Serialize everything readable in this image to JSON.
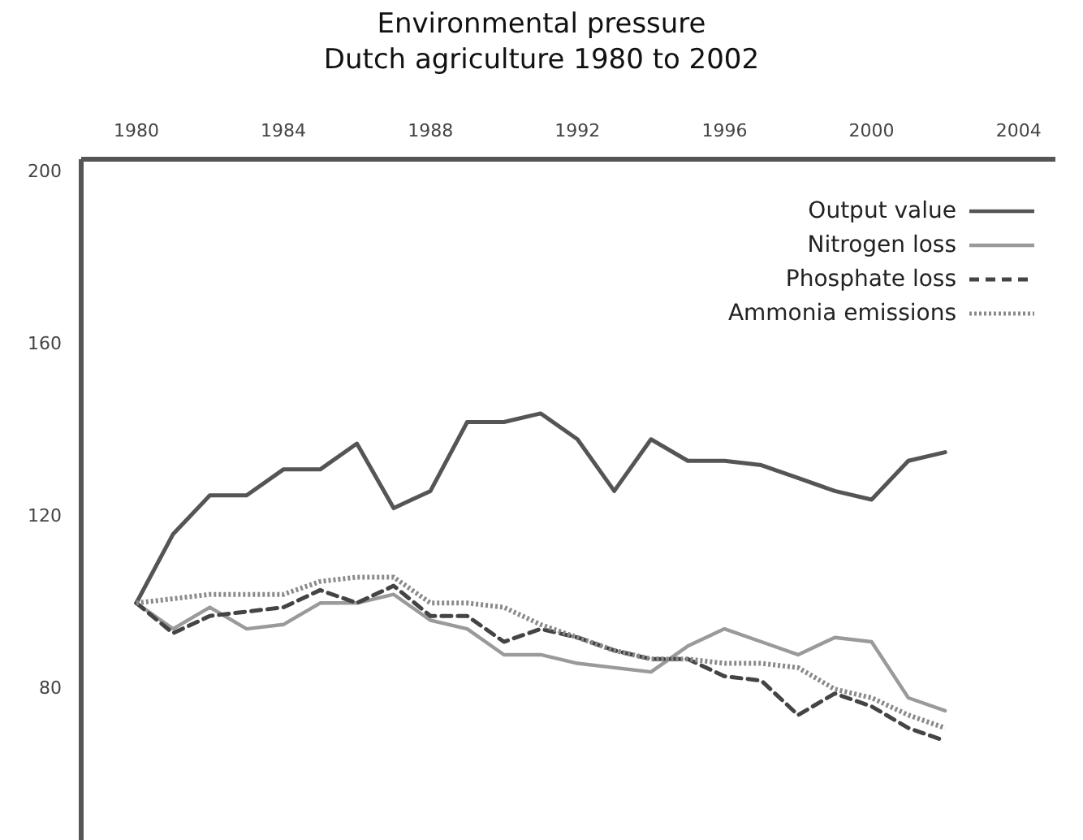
{
  "chart_data": {
    "type": "line",
    "title": "Environmental pressure\nDutch agriculture 1980 to 2002",
    "x": [
      1980,
      1981,
      1982,
      1983,
      1984,
      1985,
      1986,
      1987,
      1988,
      1989,
      1990,
      1991,
      1992,
      1993,
      1994,
      1995,
      1996,
      1997,
      1998,
      1999,
      2000,
      2001,
      2002
    ],
    "series": [
      {
        "name": "Output value",
        "color": "#555555",
        "line_style": "solid",
        "values": [
          100,
          116,
          125,
          125,
          131,
          131,
          137,
          122,
          126,
          142,
          142,
          144,
          138,
          126,
          138,
          133,
          133,
          132,
          129,
          126,
          124,
          133,
          135
        ]
      },
      {
        "name": "Nitrogen loss",
        "color": "#9a9a9a",
        "line_style": "solid",
        "values": [
          100,
          94,
          99,
          94,
          95,
          100,
          100,
          102,
          96,
          94,
          88,
          88,
          86,
          85,
          84,
          90,
          94,
          91,
          88,
          92,
          91,
          78,
          75
        ]
      },
      {
        "name": "Phosphate loss",
        "color": "#444444",
        "line_style": "dashed",
        "values": [
          100,
          93,
          97,
          98,
          99,
          103,
          100,
          104,
          97,
          97,
          91,
          94,
          92,
          89,
          87,
          87,
          83,
          82,
          74,
          79,
          76,
          71,
          68
        ]
      },
      {
        "name": "Ammonia emissions",
        "color": "#8a8a8a",
        "line_style": "dotted",
        "values": [
          100,
          101,
          102,
          102,
          102,
          105,
          106,
          106,
          100,
          100,
          99,
          95,
          92,
          89,
          87,
          87,
          86,
          86,
          85,
          80,
          78,
          74,
          71
        ]
      }
    ],
    "xlim": [
      1978.5,
      2005
    ],
    "xticks": [
      1980,
      1984,
      1988,
      1992,
      1996,
      2000,
      2004
    ],
    "ylim": [
      45,
      203
    ],
    "yticks": [
      80,
      120,
      160,
      200
    ],
    "legend": "top right",
    "grid": false
  }
}
